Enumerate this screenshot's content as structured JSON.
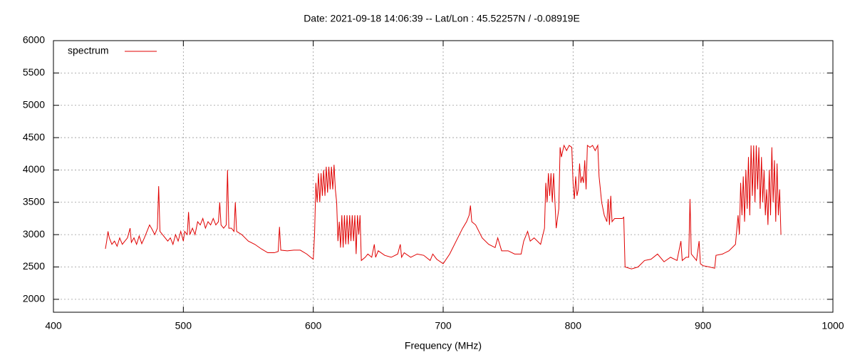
{
  "chart_data": {
    "type": "line",
    "title": "Date: 2021-09-18 14:06:39  --  Lat/Lon : 45.52257N / -0.08919E",
    "x_label": "Frequency (MHz)",
    "xlim": [
      400,
      1000
    ],
    "xticks": [
      400,
      500,
      600,
      700,
      800,
      900,
      1000
    ],
    "ylim": [
      1800,
      6000
    ],
    "yticks": [
      2000,
      2500,
      3000,
      3500,
      4000,
      4500,
      5000,
      5500,
      6000
    ],
    "grid": true,
    "legend": "top-left",
    "x": [
      440,
      441,
      442,
      443,
      445,
      447,
      449,
      451,
      453,
      455,
      457,
      459,
      460,
      462,
      464,
      466,
      468,
      470,
      472,
      474,
      476,
      478,
      480,
      481,
      482,
      484,
      486,
      488,
      490,
      492,
      494,
      496,
      498,
      500,
      501,
      503,
      504,
      505,
      507,
      509,
      511,
      513,
      515,
      517,
      519,
      521,
      523,
      525,
      527,
      528,
      529,
      531,
      533,
      534,
      535,
      537,
      539,
      540,
      541,
      545,
      550,
      555,
      560,
      565,
      570,
      573,
      574,
      575,
      580,
      585,
      590,
      595,
      598,
      600,
      601,
      602,
      603,
      604,
      605,
      606,
      607,
      608,
      609,
      610,
      611,
      612,
      613,
      614,
      615,
      616,
      617,
      618,
      619,
      620,
      621,
      622,
      623,
      624,
      625,
      626,
      627,
      628,
      629,
      630,
      631,
      632,
      633,
      634,
      635,
      636,
      637,
      640,
      642,
      645,
      647,
      648,
      650,
      655,
      660,
      665,
      667,
      668,
      670,
      675,
      680,
      685,
      690,
      692,
      695,
      700,
      705,
      710,
      715,
      718,
      720,
      721,
      722,
      725,
      730,
      735,
      740,
      742,
      745,
      750,
      755,
      760,
      762,
      765,
      767,
      770,
      775,
      778,
      779,
      780,
      781,
      782,
      783,
      784,
      785,
      787,
      789,
      790,
      791,
      793,
      795,
      797,
      799,
      800,
      801,
      802,
      803,
      804,
      805,
      806,
      807,
      808,
      809,
      810,
      811,
      813,
      815,
      817,
      819,
      820,
      822,
      824,
      826,
      827,
      828,
      829,
      830,
      832,
      835,
      838,
      839,
      840,
      845,
      850,
      855,
      860,
      865,
      870,
      875,
      880,
      883,
      884,
      887,
      889,
      890,
      891,
      895,
      897,
      898,
      900,
      905,
      909,
      910,
      915,
      920,
      925,
      927,
      928,
      929,
      930,
      931,
      932,
      933,
      934,
      935,
      936,
      937,
      938,
      939,
      940,
      941,
      942,
      943,
      944,
      945,
      946,
      947,
      948,
      949,
      950,
      951,
      952,
      953,
      954,
      955,
      956,
      957,
      958,
      959,
      960
    ],
    "series": [
      {
        "name": "spectrum",
        "color": "#e00000",
        "values": [
          2780,
          2900,
          3050,
          2950,
          2850,
          2900,
          2820,
          2950,
          2850,
          2900,
          2950,
          3100,
          2880,
          2950,
          2850,
          2980,
          2860,
          2950,
          3050,
          3150,
          3080,
          3000,
          3100,
          3750,
          3050,
          3000,
          2950,
          2900,
          2950,
          2850,
          3000,
          2900,
          3050,
          2900,
          3050,
          3000,
          3350,
          3000,
          3100,
          3000,
          3200,
          3150,
          3250,
          3100,
          3200,
          3150,
          3250,
          3150,
          3200,
          3500,
          3150,
          3100,
          3150,
          4000,
          3100,
          3100,
          3050,
          3500,
          3050,
          3000,
          2900,
          2850,
          2780,
          2720,
          2720,
          2740,
          3120,
          2760,
          2750,
          2760,
          2760,
          2700,
          2650,
          2620,
          3000,
          3800,
          3500,
          3950,
          3500,
          3950,
          3600,
          4000,
          3600,
          4050,
          3650,
          4050,
          3700,
          4050,
          3700,
          4080,
          3700,
          3500,
          2900,
          3200,
          2800,
          3300,
          2800,
          3300,
          2850,
          3300,
          2850,
          3300,
          2900,
          3300,
          2900,
          3300,
          2700,
          3300,
          3000,
          3300,
          2600,
          2650,
          2700,
          2650,
          2850,
          2650,
          2750,
          2680,
          2650,
          2700,
          2850,
          2650,
          2720,
          2650,
          2700,
          2680,
          2600,
          2700,
          2620,
          2550,
          2700,
          2900,
          3100,
          3200,
          3300,
          3450,
          3200,
          3150,
          2950,
          2850,
          2800,
          2950,
          2750,
          2750,
          2700,
          2700,
          2900,
          3050,
          2900,
          2950,
          2850,
          3100,
          3800,
          3500,
          3950,
          3600,
          3950,
          3500,
          3950,
          3100,
          3400,
          4350,
          4200,
          4380,
          4300,
          4380,
          4350,
          3800,
          3550,
          3900,
          3600,
          3700,
          4100,
          3800,
          3900,
          3800,
          4150,
          3700,
          4380,
          4350,
          4380,
          4300,
          4380,
          3900,
          3500,
          3300,
          3200,
          3550,
          3150,
          3600,
          3200,
          3250,
          3250,
          3250,
          3270,
          2500,
          2470,
          2500,
          2600,
          2620,
          2700,
          2580,
          2650,
          2600,
          2900,
          2600,
          2650,
          2650,
          3550,
          2700,
          2600,
          2900,
          2550,
          2520,
          2500,
          2480,
          2680,
          2700,
          2750,
          2850,
          3300,
          3000,
          3800,
          3300,
          3900,
          3200,
          4000,
          3400,
          4200,
          3300,
          4380,
          3600,
          4380,
          3500,
          4380,
          3700,
          4350,
          3400,
          4200,
          3500,
          4000,
          3300,
          3700,
          3150,
          4000,
          3300,
          4350,
          3500,
          4150,
          3200,
          4100,
          3300,
          3700,
          3000
        ]
      }
    ]
  }
}
